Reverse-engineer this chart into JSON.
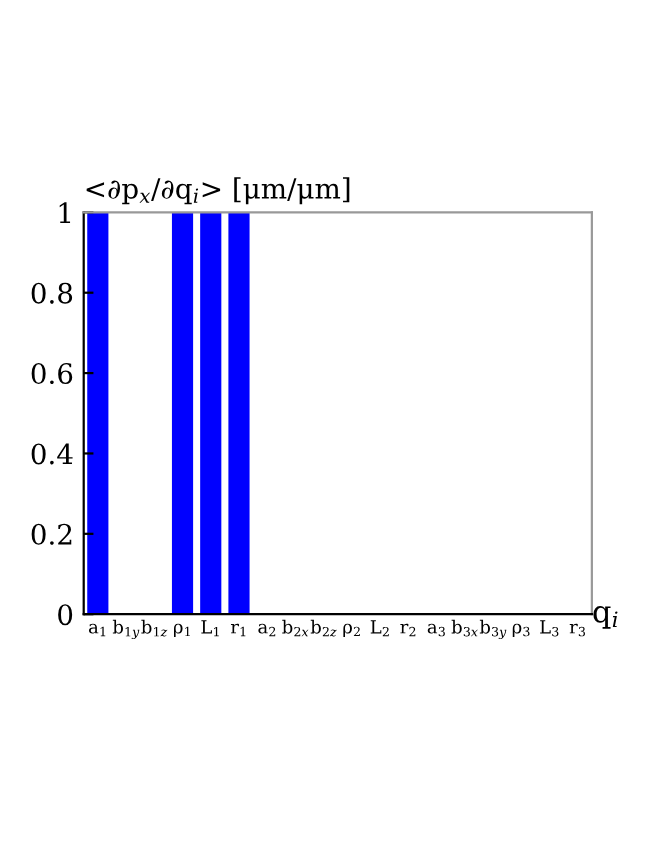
{
  "chart_data": {
    "type": "bar",
    "title": "<∂p$_{x}$/∂q$_{i}$> [μm/μm]",
    "xlabel": "q$_{i}$",
    "categories": [
      "a$_{1}$",
      "b$_{1y}$",
      "b$_{1z}$",
      "ρ$_{1}$",
      "L$_{1}$",
      "r$_{1}$",
      "a$_{2}$",
      "b$_{2x}$",
      "b$_{2z}$",
      "ρ$_{2}$",
      "L$_{2}$",
      "r$_{2}$",
      "a$_{3}$",
      "b$_{3x}$",
      "b$_{3y}$",
      "ρ$_{3}$",
      "L$_{3}$",
      "r$_{3}$"
    ],
    "values": [
      1,
      0,
      0,
      1,
      1,
      1,
      0,
      0,
      0,
      0,
      0,
      0,
      0,
      0,
      0,
      0,
      0,
      0
    ],
    "color": "#0000ff",
    "ylim": [
      0,
      1
    ],
    "yticks": [
      0,
      0.2,
      0.4,
      0.6,
      0.8,
      1
    ],
    "grid": false,
    "legend": false
  }
}
